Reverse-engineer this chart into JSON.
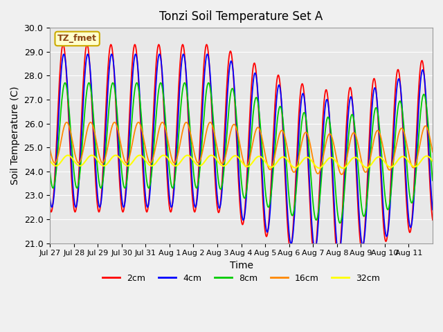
{
  "title": "Tonzi Soil Temperature Set A",
  "xlabel": "Time",
  "ylabel": "Soil Temperature (C)",
  "ylim": [
    21.0,
    30.0
  ],
  "yticks": [
    21.0,
    22.0,
    23.0,
    24.0,
    25.0,
    26.0,
    27.0,
    28.0,
    29.0,
    30.0
  ],
  "annotation": "TZ_fmet",
  "legend_labels": [
    "2cm",
    "4cm",
    "8cm",
    "16cm",
    "32cm"
  ],
  "line_colors": [
    "#ff0000",
    "#0000ff",
    "#00cc00",
    "#ff8800",
    "#ffff00"
  ],
  "bg_color": "#e8e8e8",
  "xtick_labels": [
    "Jul 27",
    "Jul 28",
    "Jul 29",
    "Jul 30",
    "Jul 31",
    "Aug 1",
    "Aug 2",
    "Aug 3",
    "Aug 4",
    "Aug 5",
    "Aug 6",
    "Aug 7",
    "Aug 8",
    "Aug 9",
    "Aug 10",
    "Aug 11"
  ],
  "num_days": 16
}
